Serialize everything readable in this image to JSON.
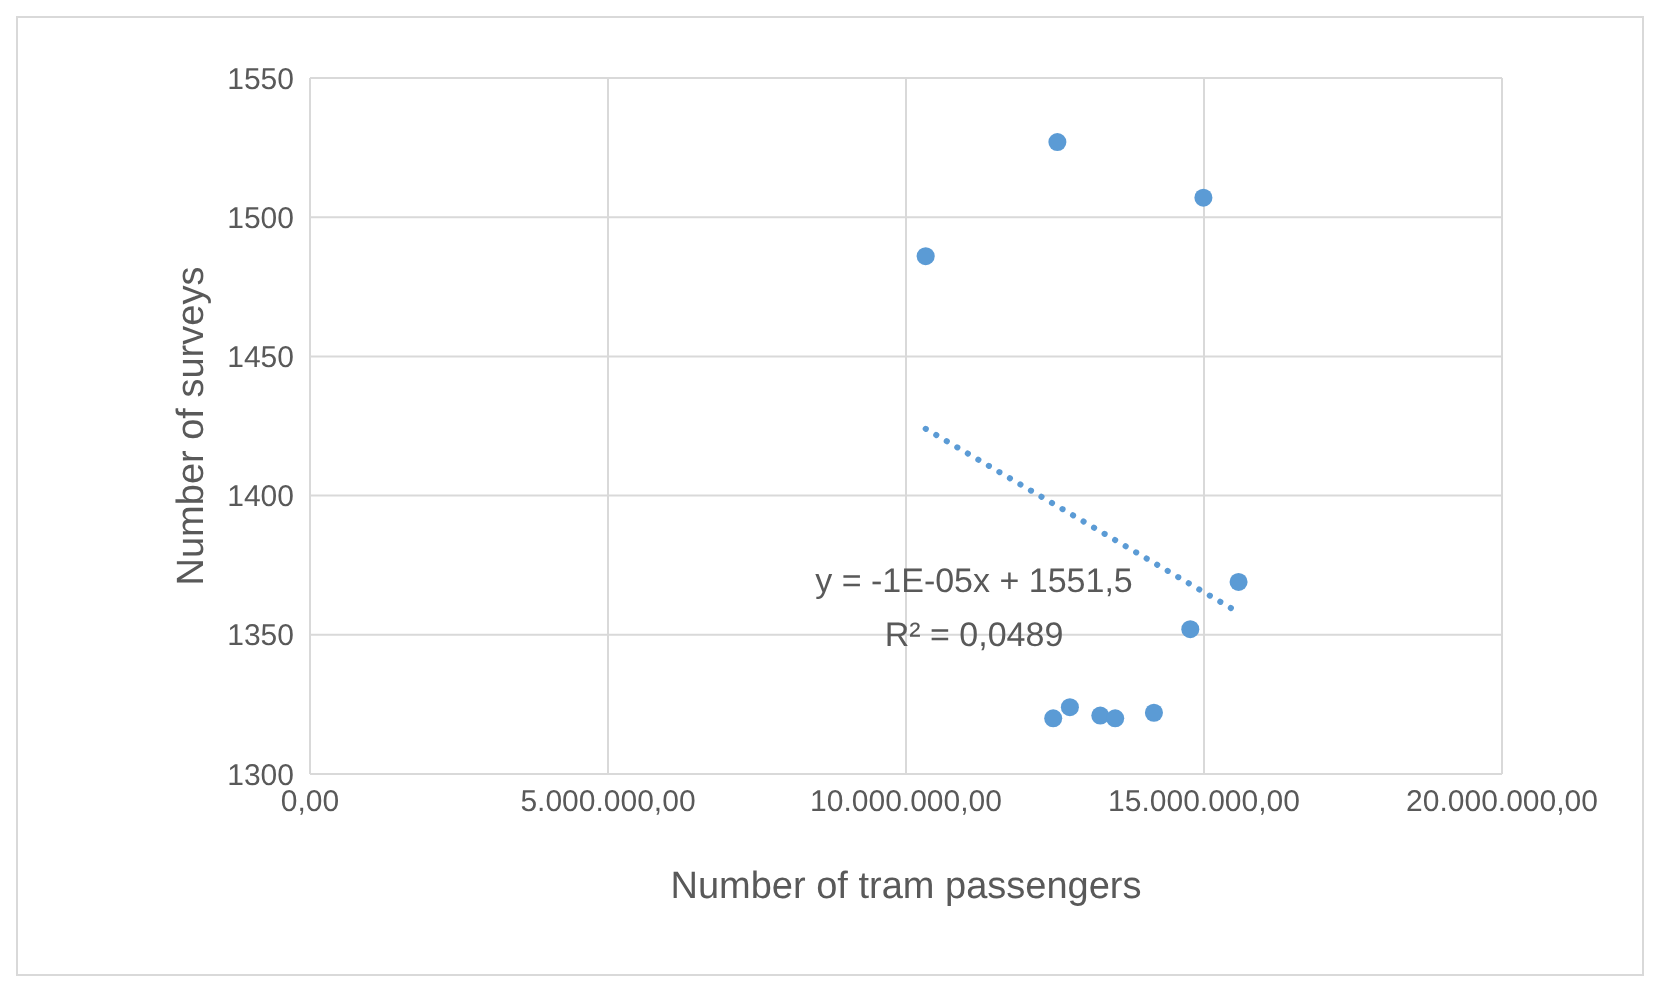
{
  "chart_data": {
    "type": "scatter",
    "xlabel": "Number of tram passengers",
    "ylabel": "Number of surveys",
    "series": [
      {
        "color": "#5b9bd5",
        "marker": "circle",
        "x": [
          10330000,
          12540000,
          14990000,
          15580000,
          14770000,
          12470000,
          12750000,
          13260000,
          13510000,
          14160000
        ],
        "values": [
          1486,
          1527,
          1507,
          1369,
          1352,
          1320,
          1324,
          1321,
          1320,
          1322
        ]
      },
      {
        "type": "line",
        "color": "#5b9bd5",
        "line_style": "dotted",
        "marker": "none",
        "x": [
          10330000,
          15580000
        ],
        "values": [
          1424,
          1358
        ]
      }
    ],
    "annotations": [
      "y = -1E-05x + 1551,5",
      "R² = 0,0489"
    ],
    "xlim": [
      0,
      20000000
    ],
    "xticks": [
      {
        "value": 0,
        "label": "0,00"
      },
      {
        "value": 5000000,
        "label": "5.000.000,00"
      },
      {
        "value": 10000000,
        "label": "10.000.000,00"
      },
      {
        "value": 15000000,
        "label": "15.000.000,00"
      },
      {
        "value": 20000000,
        "label": "20.000.000,00"
      }
    ],
    "ylim": [
      1300,
      1550
    ],
    "yticks": [
      1300,
      1350,
      1400,
      1450,
      1500,
      1550
    ],
    "grid": true,
    "legend": false
  }
}
